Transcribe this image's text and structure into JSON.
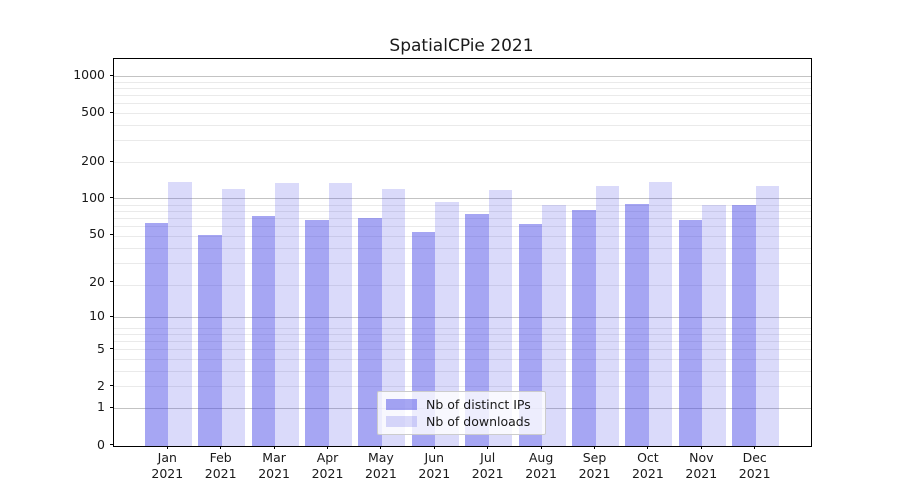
{
  "figure": {
    "background_color": "#ffffff"
  },
  "chart_data": {
    "type": "bar",
    "title": "SpatialCPie 2021",
    "categories": [
      "Jan",
      "Feb",
      "Mar",
      "Apr",
      "May",
      "Jun",
      "Jul",
      "Aug",
      "Sep",
      "Oct",
      "Nov",
      "Dec"
    ],
    "category_year": "2021",
    "series": [
      {
        "name": "Nb of distinct IPs",
        "color": "rgba(70,70,230,0.48)",
        "values": [
          64,
          50,
          73,
          67,
          70,
          53,
          75,
          62,
          81,
          91,
          67,
          90
        ]
      },
      {
        "name": "Nb of downloads",
        "color": "rgba(70,70,230,0.2)",
        "values": [
          137,
          120,
          136,
          135,
          121,
          95,
          118,
          90,
          128,
          139,
          90,
          128
        ]
      }
    ],
    "xlabel": "",
    "ylabel": "",
    "y_scale": "log10(value+1)",
    "y_ticks": [
      1000,
      500,
      200,
      100,
      50,
      20,
      10,
      5,
      2,
      1,
      0
    ],
    "y_major_gridlines": [
      1,
      10,
      100,
      1000
    ],
    "y_minor_gridlines_value_plus_1": [
      3,
      4,
      5,
      6,
      7,
      8,
      9,
      20,
      30,
      40,
      50,
      60,
      70,
      80,
      90,
      200,
      300,
      400,
      500,
      600,
      700,
      800,
      900
    ],
    "ylim": [
      0,
      1390
    ],
    "grid": true,
    "legend_position": "lower center",
    "colors": {
      "major_grid": "#c3c3c3",
      "minor_grid": "#eaeaea",
      "axis": "#000000",
      "text": "#1a1a1a",
      "legend_border": "#cccccc",
      "legend_background": "rgba(255,255,255,0.8)"
    }
  }
}
